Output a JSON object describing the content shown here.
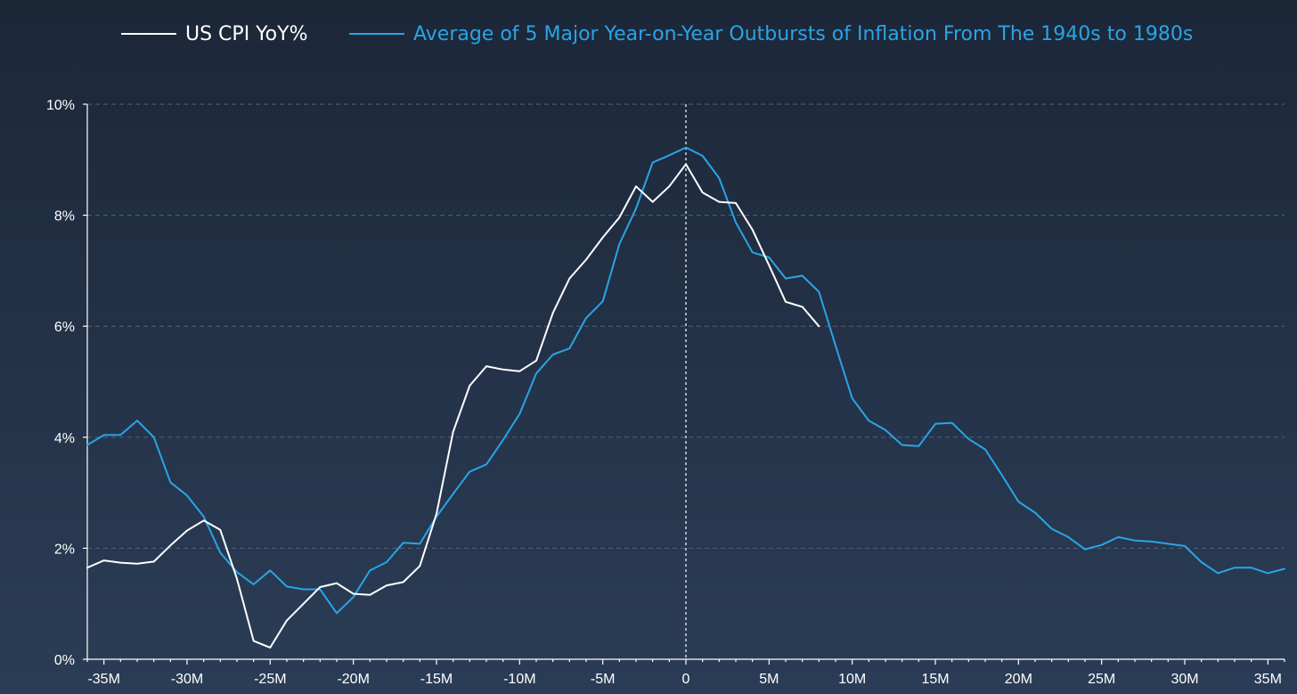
{
  "chart_data": {
    "type": "line",
    "title": "",
    "xlabel": "",
    "ylabel": "",
    "x_range": [
      -36,
      36
    ],
    "ylim": [
      0,
      10
    ],
    "grid": true,
    "legend_position": "top",
    "y_ticks": [
      {
        "value": 0,
        "label": "0%"
      },
      {
        "value": 2,
        "label": "2%"
      },
      {
        "value": 4,
        "label": "4%"
      },
      {
        "value": 6,
        "label": "6%"
      },
      {
        "value": 8,
        "label": "8%"
      },
      {
        "value": 10,
        "label": "10%"
      }
    ],
    "x_ticks": [
      {
        "value": -35,
        "label": "-35M"
      },
      {
        "value": -30,
        "label": "-30M"
      },
      {
        "value": -25,
        "label": "-25M"
      },
      {
        "value": -20,
        "label": "-20M"
      },
      {
        "value": -15,
        "label": "-15M"
      },
      {
        "value": -10,
        "label": "-10M"
      },
      {
        "value": -5,
        "label": "-5M"
      },
      {
        "value": 0,
        "label": "0"
      },
      {
        "value": 5,
        "label": "5M"
      },
      {
        "value": 10,
        "label": "10M"
      },
      {
        "value": 15,
        "label": "15M"
      },
      {
        "value": 20,
        "label": "20M"
      },
      {
        "value": 25,
        "label": "25M"
      },
      {
        "value": 30,
        "label": "30M"
      },
      {
        "value": 35,
        "label": "35M"
      }
    ],
    "series": [
      {
        "name": "US CPI YoY%",
        "color": "#ffffff",
        "x_start": -36,
        "values": [
          1.65,
          1.78,
          1.74,
          1.72,
          1.76,
          2.05,
          2.32,
          2.5,
          2.33,
          1.45,
          0.33,
          0.21,
          0.7,
          1.0,
          1.3,
          1.37,
          1.18,
          1.16,
          1.33,
          1.39,
          1.68,
          2.62,
          4.1,
          4.93,
          5.28,
          5.22,
          5.19,
          5.38,
          6.24,
          6.86,
          7.2,
          7.6,
          7.96,
          8.52,
          8.24,
          8.52,
          8.92,
          8.41,
          8.24,
          8.22,
          7.74,
          7.1,
          6.44,
          6.35,
          6.0
        ]
      },
      {
        "name": "Average of 5 Major Year-on-Year Outbursts of Inflation From The 1940s to 1980s",
        "color": "#2aa4e6",
        "x_start": -36,
        "values": [
          3.86,
          4.04,
          4.04,
          4.3,
          4.0,
          3.19,
          2.95,
          2.57,
          1.92,
          1.57,
          1.35,
          1.6,
          1.31,
          1.26,
          1.26,
          0.83,
          1.12,
          1.6,
          1.75,
          2.1,
          2.08,
          2.57,
          2.98,
          3.38,
          3.51,
          3.95,
          4.42,
          5.15,
          5.49,
          5.6,
          6.15,
          6.45,
          7.48,
          8.12,
          8.95,
          9.08,
          9.22,
          9.07,
          8.67,
          7.87,
          7.33,
          7.24,
          6.86,
          6.91,
          6.62,
          5.65,
          4.7,
          4.3,
          4.13,
          3.86,
          3.84,
          4.24,
          4.26,
          3.97,
          3.78,
          3.32,
          2.84,
          2.64,
          2.35,
          2.2,
          1.98,
          2.06,
          2.2,
          2.14,
          2.12,
          2.08,
          2.04,
          1.75,
          1.55,
          1.65,
          1.65,
          1.55,
          1.63
        ]
      }
    ]
  }
}
